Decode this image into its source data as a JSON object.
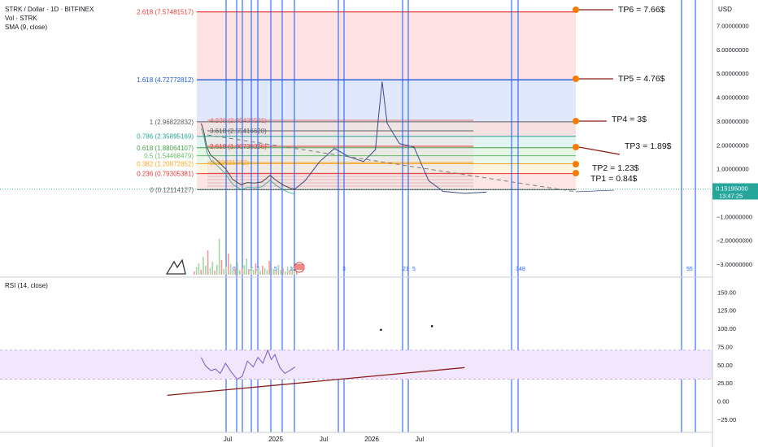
{
  "header": {
    "symbol_line": "STRK / Dollar · 1D · BITFINEX",
    "vol_line": "Vol · STRK",
    "sma_line": "SMA (9, close)"
  },
  "rsi_title": "RSI (14, close)",
  "currency": "USD",
  "price_axis": {
    "ticks": [
      "7.00000000",
      "6.00000000",
      "5.00000000",
      "4.00000000",
      "3.00000000",
      "2.00000000",
      "1.00000000",
      "0.00000000",
      "−1.00000000",
      "−2.00000000",
      "−3.00000000"
    ],
    "current_price": "0.15195000",
    "countdown": "13:47:25"
  },
  "rsi_axis": {
    "ticks": [
      "150.00",
      "125.00",
      "100.00",
      "75.00",
      "50.00",
      "25.00",
      "0.00",
      "−25.00"
    ]
  },
  "time_axis": {
    "labels": [
      "Jul",
      "2025",
      "Jul",
      "2026",
      "Jul"
    ]
  },
  "fib_main": [
    {
      "label": "2.618 (7.57481517)",
      "color": "#e53935"
    },
    {
      "label": "1.618 (4.72772812)",
      "color": "#1e5bd8"
    },
    {
      "label": "1 (2.96822832)",
      "color": "#5d5d5d"
    },
    {
      "label": "0.786 (2.35895169)",
      "color": "#26a69a"
    },
    {
      "label": "0.618 (1.88064107)",
      "color": "#43a047"
    },
    {
      "label": "0.5 (1.54468479)",
      "color": "#66bb6a"
    },
    {
      "label": "0.382 (1.20872852)",
      "color": "#f9a825"
    },
    {
      "label": "0.236 (0.79305381)",
      "color": "#e53935"
    },
    {
      "label": "0 (0.12114127)",
      "color": "#5d5d5d"
    }
  ],
  "fib_inner": [
    {
      "label": "4.236 (2.95435581)",
      "color": "#e57373"
    },
    {
      "label": "3.618 (2.55416620)",
      "color": "#5d5d5d"
    },
    {
      "label": "2.618 (1.88739336)",
      "color": "#e53935"
    },
    {
      "label": "(1.22021542)",
      "color": "#f9a825"
    }
  ],
  "targets": [
    "TP6 = 7.66$",
    "TP5 = 4.76$",
    "TP4 = 3$",
    "TP3 = 1.89$",
    "TP2 = 1.23$",
    "TP1 = 0.84$"
  ],
  "vline_labels": [
    "0",
    "2",
    "3",
    "5",
    "13",
    "3",
    "21",
    "5",
    "34",
    "8",
    "55"
  ],
  "chart_data": {
    "type": "line",
    "title": "STRK / Dollar · 1D · BITFINEX",
    "ylabel": "USD",
    "ylim": [
      -3.3,
      7.7
    ],
    "grid": false,
    "price_series": {
      "name": "STRK",
      "x": [
        "2024-02-20",
        "2024-03-01",
        "2024-03-15",
        "2024-04-01",
        "2024-04-15",
        "2024-05-01",
        "2024-06-01",
        "2024-07-01",
        "2024-08-05",
        "2024-09-01",
        "2024-10-01",
        "2024-11-01",
        "2024-12-05",
        "2025-01-01",
        "2025-02-01",
        "2025-03-01",
        "2025-03-20"
      ],
      "values": [
        2.9,
        2.6,
        1.9,
        1.55,
        1.45,
        1.3,
        1.0,
        0.55,
        0.33,
        0.42,
        0.4,
        0.45,
        0.72,
        0.5,
        0.3,
        0.18,
        0.15
      ]
    },
    "projection_series": {
      "x": [
        "2025-03-20",
        "2025-05-01",
        "2025-07-01",
        "2025-09-01",
        "2025-11-01",
        "2026-01-01",
        "2026-02-20",
        "2026-03-05",
        "2026-03-20",
        "2026-04-10",
        "2026-06-01",
        "2026-08-01",
        "2026-10-01",
        "2026-12-01",
        "2027-03-01",
        "2027-06-01"
      ],
      "values": [
        0.15,
        0.5,
        1.3,
        1.85,
        1.5,
        1.3,
        1.8,
        3.2,
        4.65,
        2.9,
        2.05,
        1.9,
        0.5,
        0.05,
        -0.03,
        0.02
      ]
    },
    "fib_levels": [
      {
        "ratio": 2.618,
        "price": 7.57481517
      },
      {
        "ratio": 1.618,
        "price": 4.72772812
      },
      {
        "ratio": 1,
        "price": 2.96822832
      },
      {
        "ratio": 0.786,
        "price": 2.35895169
      },
      {
        "ratio": 0.618,
        "price": 1.88064107
      },
      {
        "ratio": 0.5,
        "price": 1.54468479
      },
      {
        "ratio": 0.382,
        "price": 1.20872852
      },
      {
        "ratio": 0.236,
        "price": 0.79305381
      },
      {
        "ratio": 0,
        "price": 0.12114127
      }
    ],
    "targets": [
      {
        "label": "TP6",
        "value": 7.66
      },
      {
        "label": "TP5",
        "value": 4.76
      },
      {
        "label": "TP4",
        "value": 3
      },
      {
        "label": "TP3",
        "value": 1.89
      },
      {
        "label": "TP2",
        "value": 1.23
      },
      {
        "label": "TP1",
        "value": 0.84
      }
    ],
    "current_price": 0.15195,
    "rsi": {
      "ylim": [
        -30,
        160
      ],
      "band": [
        30,
        70
      ],
      "x": [
        "2024-02-20",
        "2024-03-10",
        "2024-04-01",
        "2024-04-20",
        "2024-05-10",
        "2024-06-01",
        "2024-06-25",
        "2024-07-20",
        "2024-08-10",
        "2024-09-01",
        "2024-09-25",
        "2024-10-15",
        "2024-11-05",
        "2024-11-25",
        "2024-12-10",
        "2024-12-25",
        "2025-01-15",
        "2025-02-05",
        "2025-02-25",
        "2025-03-20"
      ],
      "values": [
        60,
        48,
        42,
        44,
        38,
        52,
        40,
        30,
        34,
        55,
        47,
        60,
        52,
        70,
        57,
        64,
        46,
        38,
        42,
        47
      ],
      "trendline": {
        "x": [
          "2023-10-01",
          "2027-03-01"
        ],
        "values": [
          8,
          46
        ]
      },
      "dots": [
        {
          "x": "2026-03-15",
          "value": 98
        },
        {
          "x": "2026-10-15",
          "value": 103
        }
      ]
    }
  }
}
